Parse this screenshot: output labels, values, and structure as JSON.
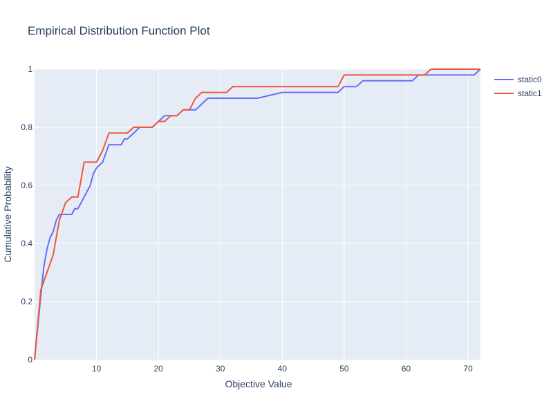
{
  "chart_data": {
    "type": "line",
    "title": "Empirical Distribution Function Plot",
    "xlabel": "Objective Value",
    "ylabel": "Cumulative Probability",
    "xlim": [
      0,
      72
    ],
    "ylim": [
      0,
      1
    ],
    "x_ticks": [
      10,
      20,
      30,
      40,
      50,
      60,
      70
    ],
    "y_ticks": [
      0,
      0.2,
      0.4,
      0.6,
      0.8,
      1
    ],
    "y_tick_labels": [
      "0",
      "0.2",
      "0.4",
      "0.6",
      "0.8",
      "1"
    ],
    "grid": true,
    "legend_position": "right",
    "plot_background": "#e5ecf6",
    "series": [
      {
        "name": "static0",
        "color": "#636efa",
        "x": [
          0,
          1,
          1.5,
          2,
          2.5,
          3,
          3.5,
          4,
          5,
          6,
          6.5,
          7,
          7.5,
          8,
          8.5,
          9,
          9.5,
          10,
          11,
          12,
          13,
          14,
          14.5,
          15,
          16,
          17,
          18,
          19,
          20,
          21,
          22,
          23,
          24,
          25,
          26,
          27,
          28,
          30,
          32,
          36,
          40,
          45,
          49,
          50,
          51,
          52,
          53,
          58,
          61,
          62,
          64,
          68,
          71,
          72
        ],
        "y": [
          0,
          0.22,
          0.32,
          0.38,
          0.42,
          0.44,
          0.48,
          0.5,
          0.5,
          0.5,
          0.52,
          0.52,
          0.54,
          0.56,
          0.58,
          0.6,
          0.64,
          0.66,
          0.68,
          0.74,
          0.74,
          0.74,
          0.76,
          0.76,
          0.78,
          0.8,
          0.8,
          0.8,
          0.82,
          0.84,
          0.84,
          0.84,
          0.86,
          0.86,
          0.86,
          0.88,
          0.9,
          0.9,
          0.9,
          0.9,
          0.92,
          0.92,
          0.92,
          0.94,
          0.94,
          0.94,
          0.96,
          0.96,
          0.96,
          0.98,
          0.98,
          0.98,
          0.98,
          1.0
        ]
      },
      {
        "name": "static1",
        "color": "#ef553b",
        "x": [
          0,
          1,
          2,
          3,
          4,
          5,
          6,
          7,
          8,
          9,
          10,
          11,
          12,
          13,
          14,
          15,
          16,
          17,
          18,
          19,
          20,
          21,
          22,
          23,
          24,
          25,
          26,
          27,
          28,
          29,
          30,
          31,
          32,
          36,
          40,
          45,
          49,
          50,
          55,
          60,
          62,
          63,
          64,
          68,
          72
        ],
        "y": [
          0,
          0.24,
          0.3,
          0.36,
          0.48,
          0.54,
          0.56,
          0.56,
          0.68,
          0.68,
          0.68,
          0.72,
          0.78,
          0.78,
          0.78,
          0.78,
          0.8,
          0.8,
          0.8,
          0.8,
          0.82,
          0.82,
          0.84,
          0.84,
          0.86,
          0.86,
          0.9,
          0.92,
          0.92,
          0.92,
          0.92,
          0.92,
          0.94,
          0.94,
          0.94,
          0.94,
          0.94,
          0.98,
          0.98,
          0.98,
          0.98,
          0.98,
          1.0,
          1.0,
          1.0
        ]
      }
    ]
  }
}
